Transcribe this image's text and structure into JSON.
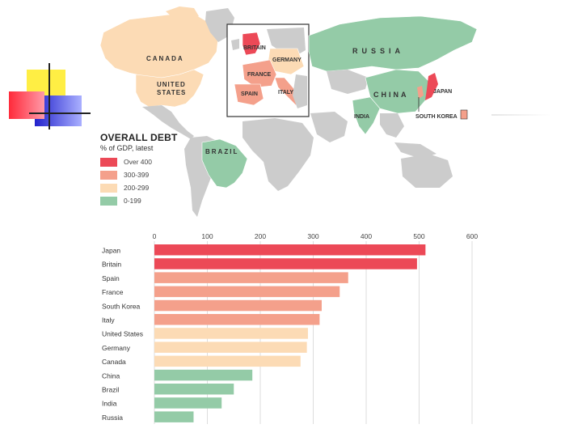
{
  "map": {
    "labels": [
      {
        "text": "CANADA",
        "key": "canada"
      },
      {
        "text": "UNITED",
        "key": "united1"
      },
      {
        "text": "STATES",
        "key": "united2"
      },
      {
        "text": "BRITAIN",
        "key": "britain"
      },
      {
        "text": "GERMANY",
        "key": "germany"
      },
      {
        "text": "FRANCE",
        "key": "france"
      },
      {
        "text": "SPAIN",
        "key": "spain"
      },
      {
        "text": "ITALY",
        "key": "italy"
      },
      {
        "text": "RUSSIA",
        "key": "russia"
      },
      {
        "text": "CHINA",
        "key": "china"
      },
      {
        "text": "JAPAN",
        "key": "japan"
      },
      {
        "text": "INDIA",
        "key": "india"
      },
      {
        "text": "SOUTH KOREA",
        "key": "skorea"
      },
      {
        "text": "BRAZIL",
        "key": "brazil"
      }
    ]
  },
  "legend": {
    "title": "OVERALL DEBT",
    "subtitle": "% of GDP, latest",
    "items": [
      {
        "label": "Over 400",
        "color": "#ec4957"
      },
      {
        "label": "300-399",
        "color": "#f4a08b"
      },
      {
        "label": "200-299",
        "color": "#fcdbb5"
      },
      {
        "label": "0-199",
        "color": "#94cba7"
      }
    ]
  },
  "chart_data": {
    "type": "bar",
    "orientation": "horizontal",
    "categories": [
      "Japan",
      "Britain",
      "Spain",
      "France",
      "South Korea",
      "Italy",
      "United States",
      "Germany",
      "Canada",
      "China",
      "Brazil",
      "India",
      "Russia"
    ],
    "values": [
      512,
      496,
      366,
      350,
      316,
      312,
      290,
      288,
      276,
      185,
      150,
      127,
      74
    ],
    "colors": [
      "#ec4957",
      "#ec4957",
      "#f4a08b",
      "#f4a08b",
      "#f4a08b",
      "#f4a08b",
      "#fcdbb5",
      "#fcdbb5",
      "#fcdbb5",
      "#94cba7",
      "#94cba7",
      "#94cba7",
      "#94cba7"
    ],
    "xticks": [
      "0",
      "100",
      "200",
      "300",
      "400",
      "500",
      "600"
    ],
    "xlim": [
      0,
      600
    ],
    "grid": true
  }
}
